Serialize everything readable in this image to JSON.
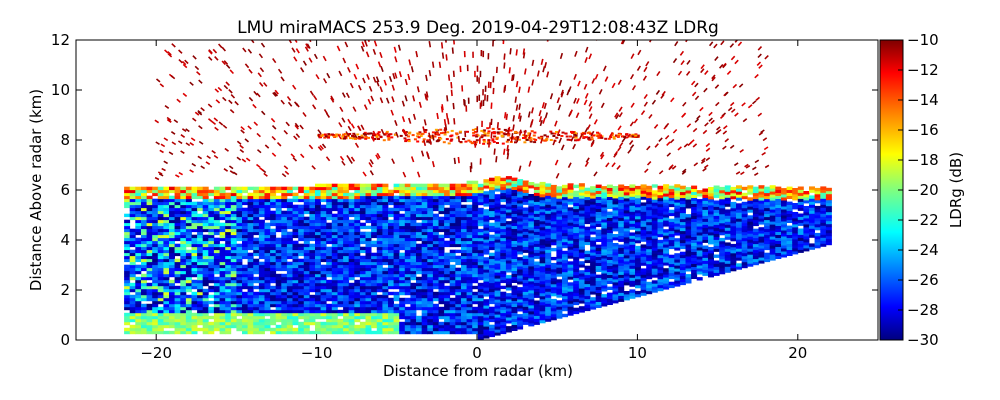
{
  "chart_data": {
    "type": "heatmap",
    "title": "LMU miraMACS 253.9 Deg. 2019-04-29T12:08:43Z  LDRg",
    "xlabel": "Distance from radar (km)",
    "ylabel": "Distance Above radar  (km)",
    "xlim": [
      -25,
      25
    ],
    "ylim": [
      0,
      12
    ],
    "x_ticks": [
      -20,
      -10,
      0,
      10,
      20
    ],
    "x_tick_labels": [
      "−20",
      "−10",
      "0",
      "10",
      "20"
    ],
    "y_ticks": [
      0,
      2,
      4,
      6,
      8,
      10,
      12
    ],
    "y_tick_labels": [
      "0",
      "2",
      "4",
      "6",
      "8",
      "10",
      "12"
    ],
    "colorbar": {
      "label": "LDRg (dB)",
      "range": [
        -30,
        -10
      ],
      "ticks": [
        -30,
        -28,
        -26,
        -24,
        -22,
        -20,
        -18,
        -16,
        -14,
        -12,
        -10
      ],
      "tick_labels": [
        "−30",
        "−28",
        "−26",
        "−24",
        "−22",
        "−20",
        "−18",
        "−16",
        "−14",
        "−12",
        "−10"
      ],
      "colormap": "jet",
      "colormap_stops": [
        "#00007f",
        "#0000ff",
        "#007fff",
        "#00ffff",
        "#7fff7f",
        "#ffff00",
        "#ff7f00",
        "#ff0000",
        "#7f0000"
      ]
    },
    "scan": {
      "azimuth_deg": 253.9,
      "timestamp": "2019-04-29T12:08:43Z",
      "coverage_x_km": [
        -22,
        22
      ],
      "main_layer_top_km": 6.2,
      "main_layer_ldr_db": [
        -30,
        -24
      ],
      "layer_top_edge_ldr_db": [
        -22,
        -12
      ],
      "upper_layer_height_km": 8.2,
      "upper_layer_ldr_db": [
        -16,
        -10
      ],
      "near_ground_ldr_db": [
        -22,
        -18
      ]
    }
  }
}
